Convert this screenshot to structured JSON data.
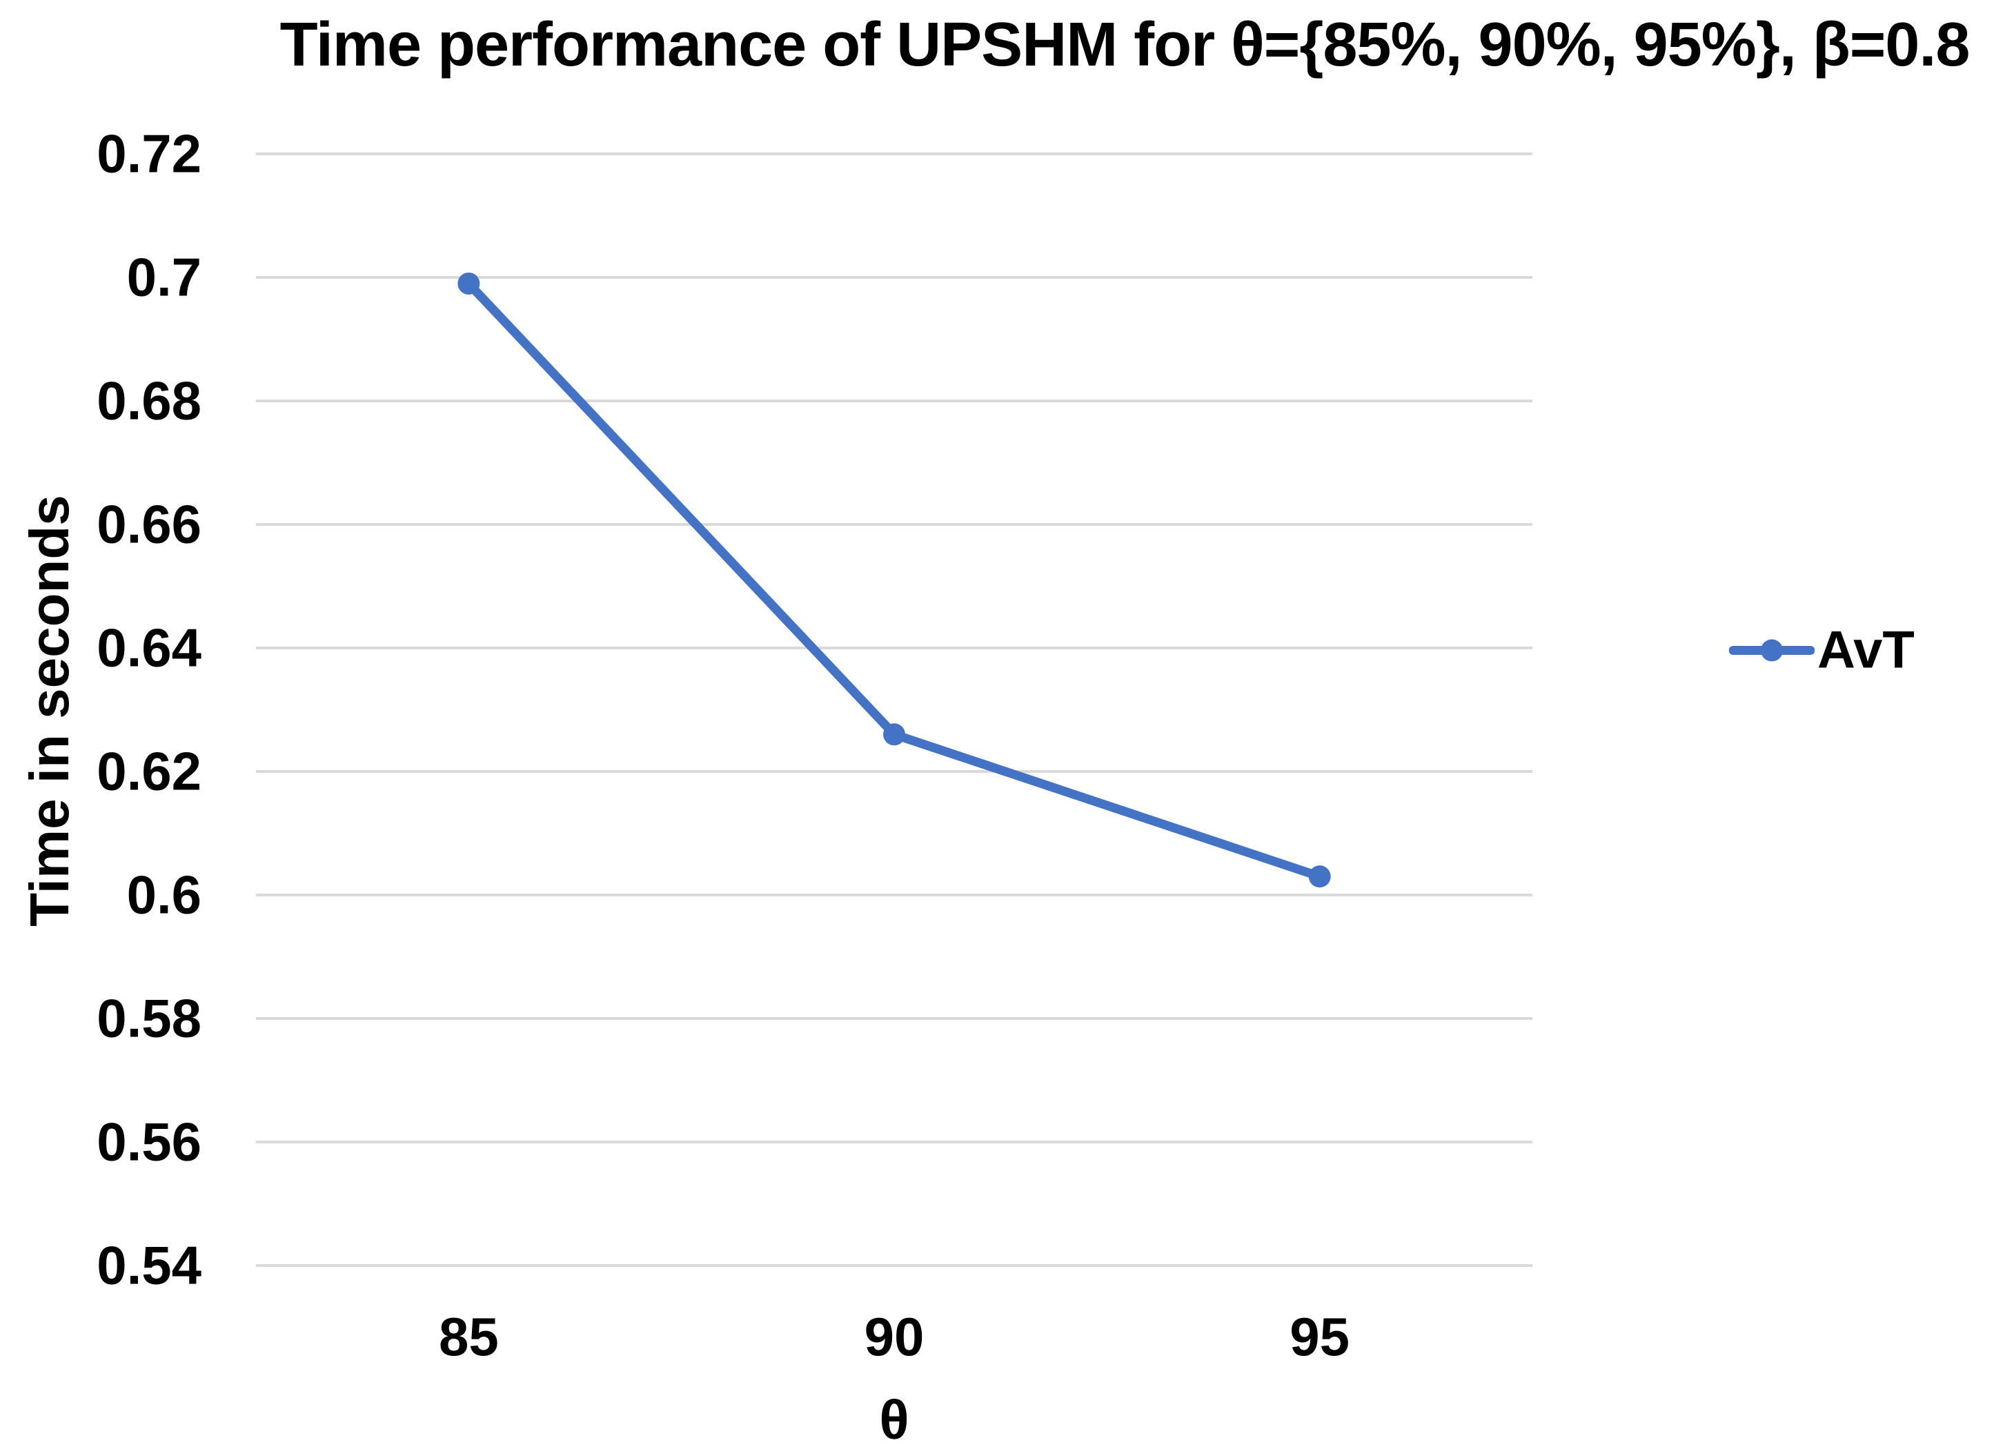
{
  "chart_data": {
    "type": "line",
    "title": "Time performance of UPSHM for θ={85%, 90%, 95%}, β=0.8",
    "xlabel": "θ",
    "ylabel": "Time in seconds",
    "categories": [
      "85",
      "90",
      "95"
    ],
    "series": [
      {
        "name": "AvT",
        "values": [
          0.699,
          0.626,
          0.603
        ]
      }
    ],
    "ylim": [
      0.54,
      0.72
    ],
    "ytick_step": 0.02,
    "ytick_labels": [
      "0.72",
      "0.7",
      "0.68",
      "0.66",
      "0.64",
      "0.62",
      "0.6",
      "0.58",
      "0.56",
      "0.54"
    ],
    "grid": true,
    "legend_position": "right",
    "colors": {
      "series": "#4472C4",
      "gridline": "#D9D9D9",
      "text": "#000000",
      "background": "#FFFFFF"
    }
  }
}
